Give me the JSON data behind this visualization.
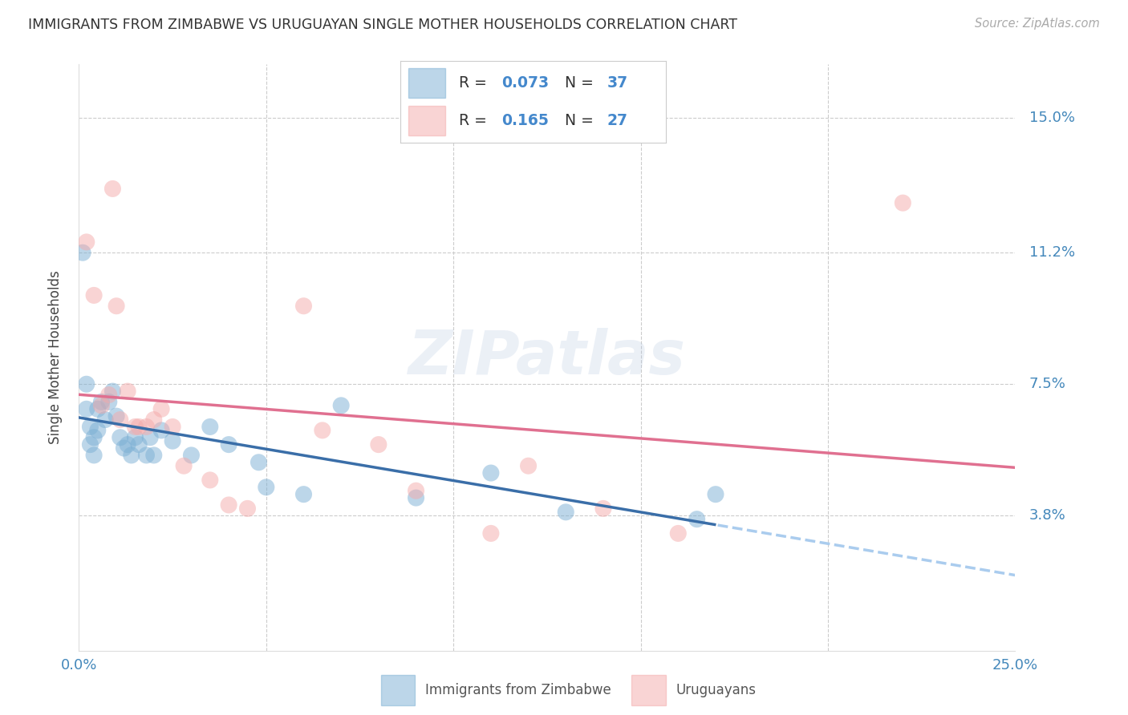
{
  "title": "IMMIGRANTS FROM ZIMBABWE VS URUGUAYAN SINGLE MOTHER HOUSEHOLDS CORRELATION CHART",
  "source": "Source: ZipAtlas.com",
  "ylabel": "Single Mother Households",
  "xlim": [
    0.0,
    0.25
  ],
  "ylim": [
    0.0,
    0.165
  ],
  "ytick_vals": [
    0.038,
    0.075,
    0.112,
    0.15
  ],
  "ytick_labels": [
    "3.8%",
    "7.5%",
    "11.2%",
    "15.0%"
  ],
  "xtick_vals": [
    0.0,
    0.05,
    0.1,
    0.15,
    0.2,
    0.25
  ],
  "xtick_labels": [
    "0.0%",
    "",
    "",
    "",
    "",
    "25.0%"
  ],
  "blue_color": "#7BAFD4",
  "pink_color": "#F4AAAA",
  "blue_line_color": "#3A6EA8",
  "pink_line_color": "#E07090",
  "blue_dash_color": "#AACCEE",
  "watermark": "ZIPatlas",
  "blue_R": "0.073",
  "blue_N": "37",
  "pink_R": "0.165",
  "pink_N": "27",
  "blue_scatter_x": [
    0.001,
    0.002,
    0.002,
    0.003,
    0.003,
    0.004,
    0.004,
    0.005,
    0.005,
    0.006,
    0.007,
    0.008,
    0.009,
    0.01,
    0.011,
    0.012,
    0.013,
    0.014,
    0.015,
    0.016,
    0.018,
    0.019,
    0.02,
    0.022,
    0.025,
    0.03,
    0.035,
    0.04,
    0.048,
    0.05,
    0.06,
    0.07,
    0.09,
    0.11,
    0.13,
    0.165,
    0.17
  ],
  "blue_scatter_y": [
    0.112,
    0.068,
    0.075,
    0.063,
    0.058,
    0.06,
    0.055,
    0.062,
    0.068,
    0.07,
    0.065,
    0.07,
    0.073,
    0.066,
    0.06,
    0.057,
    0.058,
    0.055,
    0.06,
    0.058,
    0.055,
    0.06,
    0.055,
    0.062,
    0.059,
    0.055,
    0.063,
    0.058,
    0.053,
    0.046,
    0.044,
    0.069,
    0.043,
    0.05,
    0.039,
    0.037,
    0.044
  ],
  "pink_scatter_x": [
    0.002,
    0.004,
    0.006,
    0.008,
    0.009,
    0.01,
    0.011,
    0.013,
    0.015,
    0.016,
    0.018,
    0.02,
    0.022,
    0.025,
    0.028,
    0.035,
    0.04,
    0.045,
    0.06,
    0.065,
    0.08,
    0.09,
    0.11,
    0.12,
    0.14,
    0.16,
    0.22
  ],
  "pink_scatter_y": [
    0.115,
    0.1,
    0.069,
    0.072,
    0.13,
    0.097,
    0.065,
    0.073,
    0.063,
    0.063,
    0.063,
    0.065,
    0.068,
    0.063,
    0.052,
    0.048,
    0.041,
    0.04,
    0.097,
    0.062,
    0.058,
    0.045,
    0.033,
    0.052,
    0.04,
    0.033,
    0.126
  ]
}
